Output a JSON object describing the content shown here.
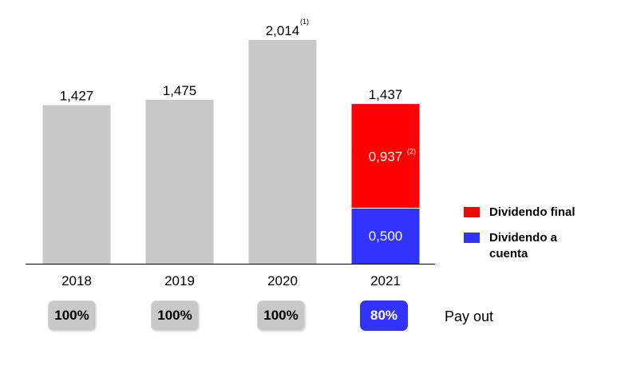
{
  "chart_data": {
    "type": "bar",
    "categories": [
      "2018",
      "2019",
      "2020",
      "2021"
    ],
    "values": [
      1.427,
      1.475,
      2.014,
      1.437
    ],
    "value_labels": [
      "1,427",
      "1,475",
      "2,014",
      "1,437"
    ],
    "value_footnotes": [
      "",
      "",
      "(1)",
      ""
    ],
    "ylim": [
      0,
      2.2
    ],
    "grid": false,
    "stacked_2021": {
      "segments": [
        {
          "name": "Dividendo a cuenta",
          "value": 0.5,
          "label": "0,500",
          "footnote": "",
          "color": "#3333ff"
        },
        {
          "name": "Dividendo final",
          "value": 0.937,
          "label": "0,937",
          "footnote": "(2)",
          "color": "#ff0000"
        }
      ]
    },
    "bar_color": "#c8c8c8",
    "legend_position": "right"
  },
  "legend": [
    {
      "label": "Dividendo final",
      "color": "#ff0000"
    },
    {
      "label": "Dividendo a cuenta",
      "color": "#3333ff"
    }
  ],
  "payout": {
    "label": "Pay out",
    "values": [
      "100%",
      "100%",
      "100%",
      "80%"
    ]
  }
}
